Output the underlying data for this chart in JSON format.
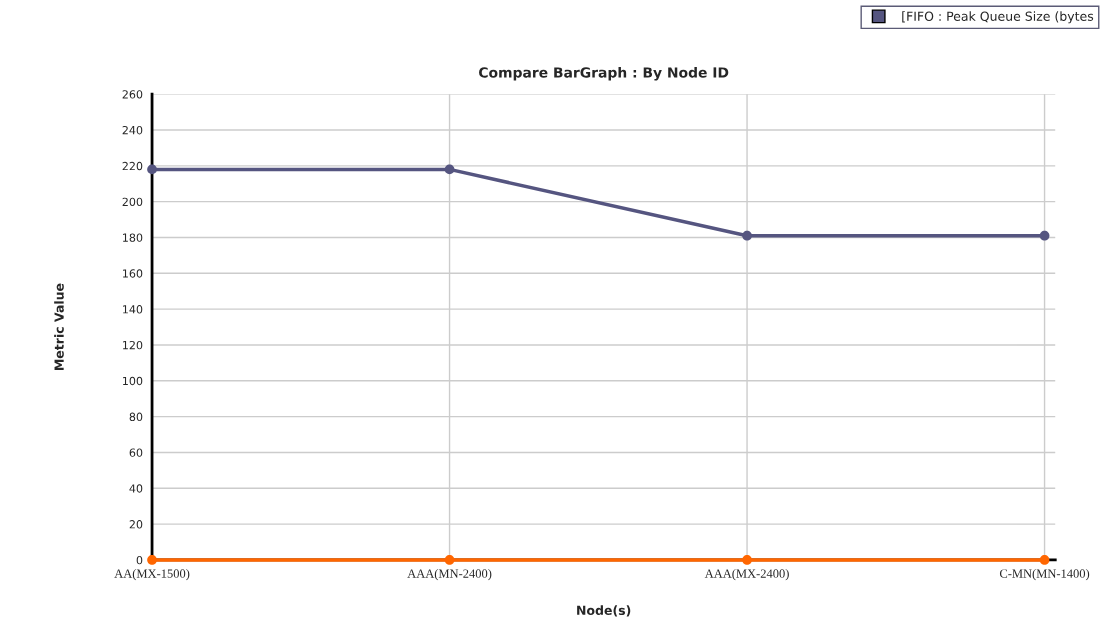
{
  "chart_data": {
    "type": "line",
    "title": "Compare BarGraph : By Node ID",
    "xlabel": "Node(s)",
    "ylabel": "Metric Value",
    "categories": [
      "AA(MX-1500)",
      "AAA(MN-2400)",
      "AAA(MX-2400)",
      "C-MN(MN-1400)"
    ],
    "series": [
      {
        "name": "[FIFO : Peak Queue Size (bytes",
        "color": "#555580",
        "values": [
          218,
          218,
          181,
          181
        ]
      },
      {
        "color": "#ff6600",
        "values": [
          0,
          0,
          0,
          0
        ]
      }
    ],
    "ylim": [
      0,
      260
    ],
    "yticks": [
      0,
      20,
      40,
      60,
      80,
      100,
      120,
      140,
      160,
      180,
      200,
      220,
      240,
      260
    ],
    "grid": true,
    "marker": "circle",
    "line_style": "solid",
    "legend": "top right"
  }
}
